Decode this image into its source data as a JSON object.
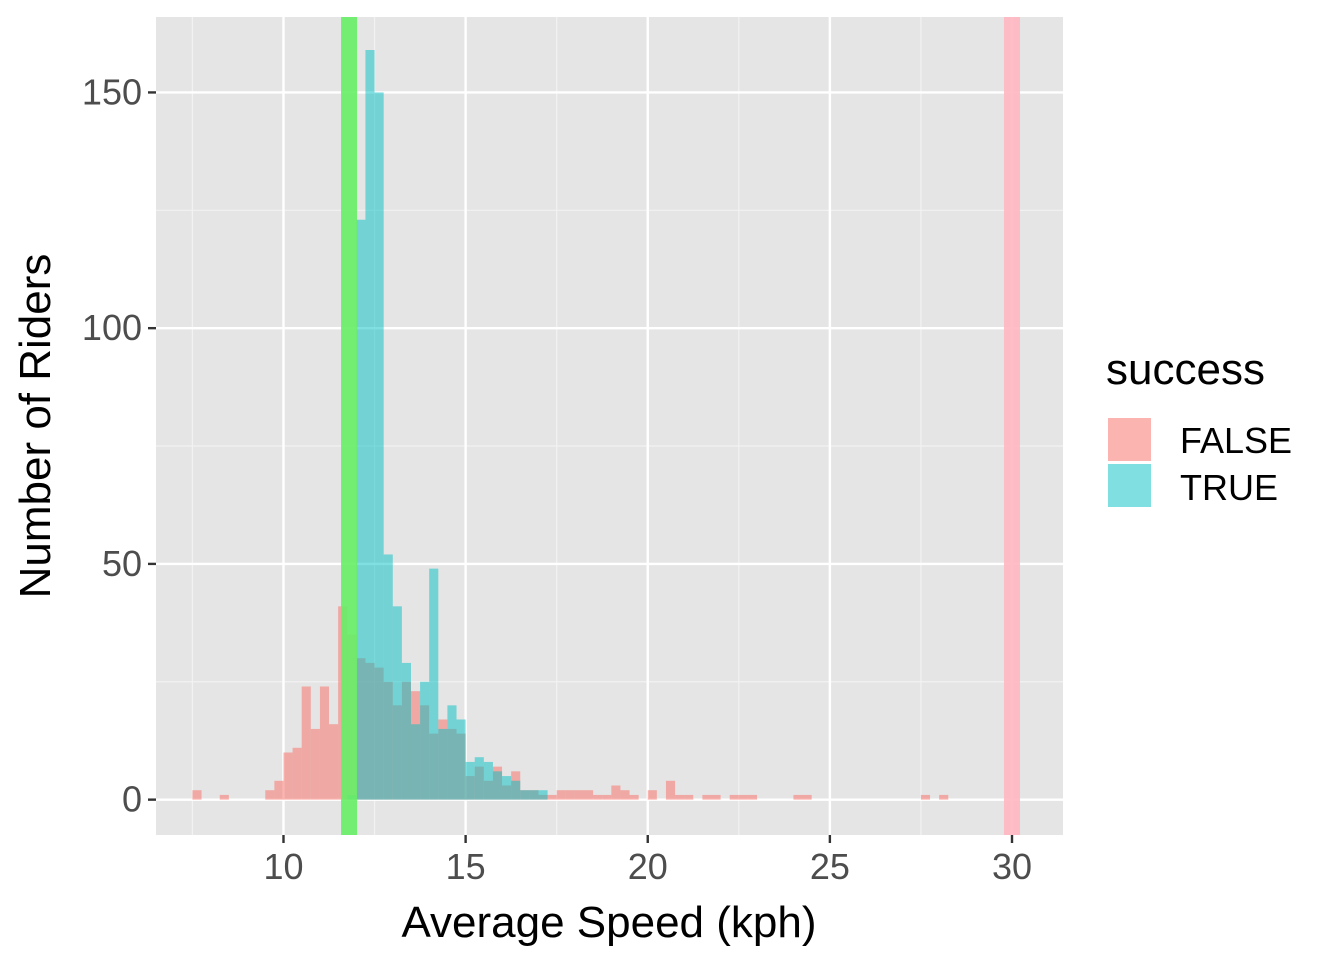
{
  "chart_data": {
    "type": "bar",
    "subtype": "overlapping-histogram",
    "xlabel": "Average Speed (kph)",
    "ylabel": "Number of Riders",
    "xlim": [
      6.5,
      31.4
    ],
    "ylim": [
      -7.5,
      166
    ],
    "x_ticks": [
      10,
      15,
      20,
      25,
      30
    ],
    "x_minor_ticks": [
      7.5,
      12.5,
      17.5,
      22.5,
      27.5
    ],
    "y_ticks": [
      0,
      50,
      100,
      150
    ],
    "y_minor_ticks": [
      25,
      75,
      125
    ],
    "grid": true,
    "bin_width": 0.25,
    "legend": {
      "title": "success",
      "position": "right",
      "entries": [
        {
          "label": "FALSE",
          "color": "#F8766D"
        },
        {
          "label": "TRUE",
          "color": "#00BFC4"
        }
      ]
    },
    "series": [
      {
        "name": "FALSE",
        "color": "#F8766D",
        "bins": [
          [
            7.5,
            2
          ],
          [
            8.25,
            1
          ],
          [
            9.5,
            2
          ],
          [
            9.75,
            4
          ],
          [
            10.0,
            10
          ],
          [
            10.25,
            11
          ],
          [
            10.5,
            24
          ],
          [
            10.75,
            15
          ],
          [
            11.0,
            24
          ],
          [
            11.25,
            16
          ],
          [
            11.5,
            41
          ],
          [
            11.75,
            35
          ],
          [
            12.0,
            30
          ],
          [
            12.25,
            29
          ],
          [
            12.5,
            28
          ],
          [
            12.75,
            25
          ],
          [
            13.0,
            20
          ],
          [
            13.25,
            25
          ],
          [
            13.5,
            23
          ],
          [
            13.75,
            20
          ],
          [
            14.0,
            14
          ],
          [
            14.25,
            17
          ],
          [
            14.5,
            15
          ],
          [
            14.75,
            14
          ],
          [
            15.0,
            5
          ],
          [
            15.25,
            7
          ],
          [
            15.5,
            4
          ],
          [
            15.75,
            7
          ],
          [
            16.0,
            3
          ],
          [
            16.25,
            6
          ],
          [
            16.5,
            2
          ],
          [
            16.75,
            2
          ],
          [
            17.0,
            1
          ],
          [
            17.25,
            1
          ],
          [
            17.5,
            2
          ],
          [
            17.75,
            2
          ],
          [
            18.0,
            2
          ],
          [
            18.25,
            2
          ],
          [
            18.5,
            1
          ],
          [
            18.75,
            1
          ],
          [
            19.0,
            3
          ],
          [
            19.25,
            2
          ],
          [
            19.5,
            1
          ],
          [
            20.0,
            2
          ],
          [
            20.5,
            4
          ],
          [
            20.75,
            1
          ],
          [
            21.0,
            1
          ],
          [
            21.5,
            1
          ],
          [
            21.75,
            1
          ],
          [
            22.25,
            1
          ],
          [
            22.5,
            1
          ],
          [
            22.75,
            1
          ],
          [
            23.0,
            0
          ],
          [
            24.0,
            1
          ],
          [
            24.25,
            1
          ],
          [
            27.5,
            1
          ],
          [
            28.0,
            1
          ]
        ]
      },
      {
        "name": "TRUE",
        "color": "#00BFC4",
        "bins": [
          [
            11.75,
            1
          ],
          [
            12.0,
            123
          ],
          [
            12.25,
            159
          ],
          [
            12.5,
            150
          ],
          [
            12.75,
            52
          ],
          [
            13.0,
            41
          ],
          [
            13.25,
            29
          ],
          [
            13.5,
            16
          ],
          [
            13.75,
            25
          ],
          [
            14.0,
            49
          ],
          [
            14.25,
            15
          ],
          [
            14.5,
            20
          ],
          [
            14.75,
            17
          ],
          [
            15.0,
            8
          ],
          [
            15.25,
            9
          ],
          [
            15.5,
            8
          ],
          [
            15.75,
            6
          ],
          [
            16.0,
            5
          ],
          [
            16.25,
            4
          ],
          [
            16.5,
            2
          ],
          [
            16.75,
            2
          ],
          [
            17.0,
            2
          ]
        ]
      }
    ],
    "reference_lines": [
      {
        "x": 11.8,
        "color": "#66EE66"
      },
      {
        "x": 30.0,
        "color": "#FFB6C1"
      }
    ]
  }
}
